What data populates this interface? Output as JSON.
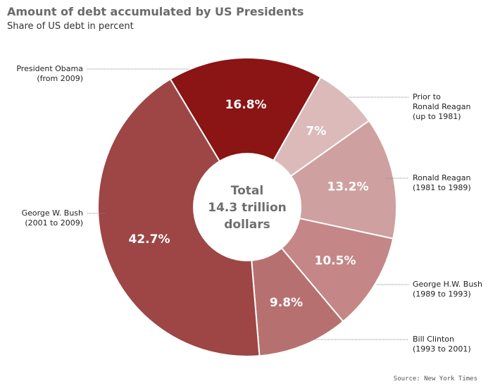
{
  "header": {
    "title": "Amount of debt accumulated by US Presidents",
    "subtitle": "Share of US debt in percent"
  },
  "center_label": [
    "Total",
    "14.3 trillion",
    "dollars"
  ],
  "source": "Source: New York Times",
  "chart_data": {
    "type": "pie",
    "title": "Amount of debt accumulated by US Presidents",
    "subtitle": "Share of US debt in percent",
    "unit": "percent",
    "total_label": "Total 14.3 trillion dollars",
    "slices": [
      {
        "label": "President Obama",
        "sublabel": "(from 2009)",
        "value": 16.8,
        "value_label": "16.8%",
        "color": "#8b1414"
      },
      {
        "label": "Prior to Ronald Reagan",
        "sublabel": "(up to 1981)",
        "value": 7,
        "value_label": "7%",
        "color": "#dcbaba"
      },
      {
        "label": "Ronald Reagan",
        "sublabel": "(1981 to 1989)",
        "value": 13.2,
        "value_label": "13.2%",
        "color": "#cfa0a0"
      },
      {
        "label": "George H.W. Bush",
        "sublabel": "(1989 to 1993)",
        "value": 10.5,
        "value_label": "10.5%",
        "color": "#c48686"
      },
      {
        "label": "Bill Clinton",
        "sublabel": "(1993 to 2001)",
        "value": 9.8,
        "value_label": "9.8%",
        "color": "#b77070"
      },
      {
        "label": "George W. Bush",
        "sublabel": "(2001 to 2009)",
        "value": 42.7,
        "value_label": "42.7%",
        "color": "#9e4545"
      }
    ],
    "outside_labels": [
      {
        "lines": [
          "President Obama",
          "(from 2009)"
        ],
        "side": "left"
      },
      {
        "lines": [
          "Prior to",
          "Ronald Reagan",
          "(up to 1981)"
        ],
        "side": "right"
      },
      {
        "lines": [
          "Ronald Reagan",
          "(1981 to 1989)"
        ],
        "side": "right"
      },
      {
        "lines": [
          "George H.W. Bush",
          "(1989 to 1993)"
        ],
        "side": "right"
      },
      {
        "lines": [
          "Bill Clinton",
          "(1993 to 2001)"
        ],
        "side": "right"
      },
      {
        "lines": [
          "George W. Bush",
          "(2001 to 2009)"
        ],
        "side": "left"
      }
    ]
  }
}
